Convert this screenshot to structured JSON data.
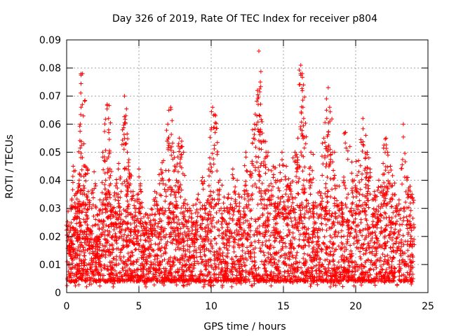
{
  "chart_data": {
    "type": "scatter",
    "title": "Day 326 of 2019, Rate Of TEC Index for receiver p804",
    "xlabel": "GPS time / hours",
    "ylabel": "ROTI / TECUs",
    "xlim": [
      0,
      25
    ],
    "ylim": [
      0,
      0.09
    ],
    "xticks": [
      0,
      5,
      10,
      15,
      20,
      25
    ],
    "xtick_labels": [
      "0",
      "5",
      "10",
      "15",
      "20",
      "25"
    ],
    "yticks": [
      0,
      0.01,
      0.02,
      0.03,
      0.04,
      0.05,
      0.06,
      0.07,
      0.08,
      0.09
    ],
    "ytick_labels": [
      "0",
      "0.01",
      "0.02",
      "0.03",
      "0.04",
      "0.05",
      "0.06",
      "0.07",
      "0.08",
      "0.09"
    ],
    "grid": true,
    "marker": "+",
    "color": "#ff0000",
    "data_range": [
      0,
      24
    ],
    "series": [
      {
        "name": "ROTI",
        "x": [
          0.15,
          0.3,
          0.45,
          0.6,
          0.75,
          0.9,
          1.0,
          1.1,
          1.3,
          1.5,
          1.7,
          1.9,
          2.1,
          2.3,
          2.5,
          2.7,
          2.8,
          2.9,
          3.0,
          3.2,
          3.4,
          3.6,
          3.8,
          4.0,
          4.1,
          4.2,
          4.4,
          4.6,
          4.8,
          5.0,
          5.2,
          5.5,
          5.8,
          6.1,
          6.4,
          6.7,
          7.0,
          7.2,
          7.4,
          7.6,
          7.8,
          8.0,
          8.2,
          8.5,
          8.8,
          9.1,
          9.4,
          9.7,
          9.9,
          10.1,
          10.3,
          10.6,
          10.9,
          11.2,
          11.5,
          11.8,
          12.1,
          12.4,
          12.7,
          13.0,
          13.2,
          13.3,
          13.4,
          13.6,
          13.8,
          14.0,
          14.3,
          14.6,
          14.9,
          15.2,
          15.5,
          15.8,
          16.0,
          16.2,
          16.3,
          16.4,
          16.6,
          16.9,
          17.2,
          17.5,
          17.8,
          18.0,
          18.1,
          18.2,
          18.4,
          18.7,
          19.0,
          19.3,
          19.6,
          19.9,
          20.2,
          20.5,
          20.7,
          20.8,
          21.0,
          21.3,
          21.6,
          21.9,
          22.1,
          22.2,
          22.4,
          22.7,
          23.0,
          23.3,
          23.6,
          23.9
        ],
        "y": [
          0.024,
          0.018,
          0.045,
          0.03,
          0.036,
          0.042,
          0.066,
          0.078,
          0.045,
          0.036,
          0.022,
          0.043,
          0.02,
          0.033,
          0.05,
          0.04,
          0.067,
          0.062,
          0.044,
          0.03,
          0.038,
          0.046,
          0.028,
          0.07,
          0.063,
          0.05,
          0.042,
          0.036,
          0.03,
          0.044,
          0.032,
          0.028,
          0.024,
          0.036,
          0.042,
          0.047,
          0.06,
          0.066,
          0.05,
          0.04,
          0.055,
          0.052,
          0.033,
          0.03,
          0.025,
          0.035,
          0.041,
          0.032,
          0.048,
          0.066,
          0.063,
          0.04,
          0.034,
          0.035,
          0.044,
          0.04,
          0.034,
          0.05,
          0.043,
          0.06,
          0.072,
          0.086,
          0.075,
          0.054,
          0.05,
          0.038,
          0.045,
          0.04,
          0.05,
          0.045,
          0.039,
          0.05,
          0.055,
          0.081,
          0.078,
          0.062,
          0.04,
          0.05,
          0.032,
          0.036,
          0.055,
          0.062,
          0.073,
          0.066,
          0.05,
          0.038,
          0.032,
          0.057,
          0.052,
          0.04,
          0.047,
          0.062,
          0.056,
          0.05,
          0.044,
          0.036,
          0.04,
          0.046,
          0.055,
          0.05,
          0.045,
          0.039,
          0.033,
          0.06,
          0.041,
          0.035
        ]
      }
    ]
  }
}
